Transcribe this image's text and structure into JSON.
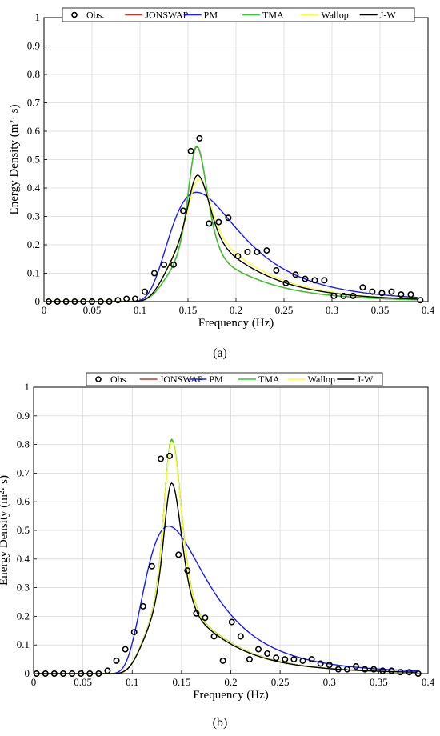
{
  "legend_entries": [
    {
      "name": "Obs.",
      "color": "#000000",
      "marker": "circle"
    },
    {
      "name": "JONSWAP",
      "color": "#c0392b"
    },
    {
      "name": "PM",
      "color": "#1a1aff"
    },
    {
      "name": "TMA",
      "color": "#2ecc2e"
    },
    {
      "name": "Wallop",
      "color": "#ffff33"
    },
    {
      "name": "J-W",
      "color": "#000000"
    }
  ],
  "chart_data": [
    {
      "type": "line",
      "panel_label": "(a)",
      "xlabel": "Frequency (Hz)",
      "ylabel": "Energy Density (m²· s)",
      "xlim": [
        0,
        0.4
      ],
      "ylim": [
        0,
        1
      ],
      "xticks": [
        "0",
        "0.05",
        "0.1",
        "0.15",
        "0.2",
        "0.25",
        "0.3",
        "0.35",
        "0.4"
      ],
      "yticks": [
        "0",
        "0.1",
        "0.2",
        "0.3",
        "0.4",
        "0.5",
        "0.6",
        "0.7",
        "0.8",
        "0.9",
        "1"
      ],
      "grid": true,
      "legend_position": "top",
      "obs": {
        "x": [
          0.005,
          0.014,
          0.023,
          0.032,
          0.041,
          0.05,
          0.059,
          0.068,
          0.077,
          0.086,
          0.095,
          0.105,
          0.115,
          0.125,
          0.135,
          0.145,
          0.153,
          0.162,
          0.172,
          0.182,
          0.192,
          0.202,
          0.212,
          0.222,
          0.232,
          0.242,
          0.252,
          0.262,
          0.272,
          0.282,
          0.292,
          0.302,
          0.312,
          0.322,
          0.332,
          0.342,
          0.352,
          0.362,
          0.372,
          0.382,
          0.392
        ],
        "y": [
          0,
          0,
          0,
          0,
          0,
          0,
          0,
          0,
          0.005,
          0.01,
          0.01,
          0.035,
          0.1,
          0.13,
          0.13,
          0.32,
          0.53,
          0.575,
          0.275,
          0.28,
          0.295,
          0.16,
          0.175,
          0.175,
          0.18,
          0.11,
          0.065,
          0.095,
          0.08,
          0.075,
          0.075,
          0.02,
          0.02,
          0.02,
          0.05,
          0.035,
          0.03,
          0.035,
          0.025,
          0.025,
          0.005
        ]
      },
      "series": [
        {
          "name": "JONSWAP",
          "color": "#c0392b",
          "fp": 0.159,
          "gamma": 3.3,
          "peak": 0.545
        },
        {
          "name": "PM",
          "color": "#1a1aff",
          "fp": 0.159,
          "gamma": 1.0,
          "peak": 0.385
        },
        {
          "name": "TMA",
          "color": "#2ecc2e",
          "fp": 0.159,
          "gamma": 3.3,
          "peak": 0.548
        },
        {
          "name": "Wallop",
          "color": "#ffff33",
          "fp": 0.161,
          "gamma": 1.8,
          "peak": 0.43
        },
        {
          "name": "J-W",
          "color": "#000000",
          "fp": 0.16,
          "gamma": 2.0,
          "peak": 0.445
        }
      ]
    },
    {
      "type": "line",
      "panel_label": "(b)",
      "xlabel": "Frequency (Hz)",
      "ylabel": "Energy Density (m²· s)",
      "xlim": [
        0,
        0.4
      ],
      "ylim": [
        0,
        1
      ],
      "xticks": [
        "0",
        "0.05",
        "0.1",
        "0.15",
        "0.2",
        "0.25",
        "0.3",
        "0.35",
        "0.4"
      ],
      "yticks": [
        "0",
        "0.1",
        "0.2",
        "0.3",
        "0.4",
        "0.5",
        "0.6",
        "0.7",
        "0.8",
        "0.9",
        "1"
      ],
      "grid": true,
      "legend_position": "top",
      "obs": {
        "x": [
          0.003,
          0.012,
          0.021,
          0.03,
          0.039,
          0.048,
          0.057,
          0.066,
          0.075,
          0.084,
          0.093,
          0.102,
          0.111,
          0.12,
          0.129,
          0.138,
          0.147,
          0.156,
          0.165,
          0.174,
          0.183,
          0.192,
          0.201,
          0.21,
          0.219,
          0.228,
          0.237,
          0.246,
          0.255,
          0.264,
          0.273,
          0.282,
          0.291,
          0.3,
          0.309,
          0.318,
          0.327,
          0.336,
          0.345,
          0.354,
          0.363,
          0.372,
          0.381,
          0.39
        ],
        "y": [
          0,
          0,
          0,
          0,
          0,
          0,
          0,
          0,
          0.01,
          0.045,
          0.085,
          0.145,
          0.235,
          0.375,
          0.75,
          0.76,
          0.415,
          0.36,
          0.21,
          0.195,
          0.13,
          0.045,
          0.18,
          0.13,
          0.05,
          0.085,
          0.07,
          0.055,
          0.05,
          0.05,
          0.045,
          0.05,
          0.035,
          0.03,
          0.015,
          0.015,
          0.025,
          0.015,
          0.015,
          0.01,
          0.01,
          0.005,
          0.005,
          0
        ]
      },
      "series": [
        {
          "name": "JONSWAP",
          "color": "#c0392b",
          "fp": 0.14,
          "gamma": 3.3,
          "peak": 0.815
        },
        {
          "name": "PM",
          "color": "#1a1aff",
          "fp": 0.137,
          "gamma": 1.0,
          "peak": 0.515
        },
        {
          "name": "TMA",
          "color": "#2ecc2e",
          "fp": 0.14,
          "gamma": 3.3,
          "peak": 0.818
        },
        {
          "name": "Wallop",
          "color": "#ffff33",
          "fp": 0.14,
          "gamma": 3.3,
          "peak": 0.81
        },
        {
          "name": "J-W",
          "color": "#000000",
          "fp": 0.14,
          "gamma": 2.8,
          "peak": 0.665
        }
      ]
    }
  ]
}
